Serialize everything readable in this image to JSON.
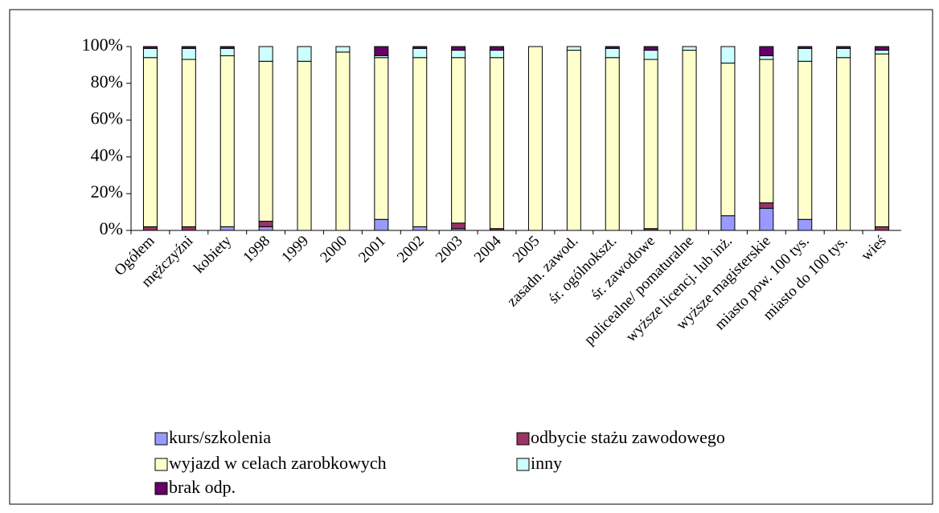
{
  "chart_data": {
    "type": "stacked_bar",
    "categories": [
      "Ogółem",
      "mężczyźni",
      "kobiety",
      "1998",
      "1999",
      "2000",
      "2001",
      "2002",
      "2003",
      "2004",
      "2005",
      "zasadn. zawod.",
      "śr. ogólnokszt.",
      "śr. zawodowe",
      "policealne/ pomaturalne",
      "wyższe licencj. lub inż.",
      "wyższe magisterskie",
      "miasto pow. 100 tys.",
      "miasto do 100 tys.",
      "wieś"
    ],
    "series": [
      {
        "name": "kurs/szkolenia",
        "color": "#9999ff",
        "values": [
          0,
          0,
          2,
          2,
          0,
          0,
          6,
          2,
          1,
          0,
          0,
          0,
          0,
          0,
          0,
          8,
          12,
          6,
          0,
          0
        ]
      },
      {
        "name": "odbycie stażu zawodowego",
        "color": "#993366",
        "values": [
          2,
          2,
          0,
          3,
          0,
          0,
          0,
          0,
          3,
          1,
          0,
          0,
          0,
          1,
          0,
          0,
          3,
          0,
          0,
          2
        ]
      },
      {
        "name": "wyjazd w celach zarobkowych",
        "color": "#ffffcc",
        "values": [
          92,
          91,
          93,
          87,
          92,
          97,
          88,
          92,
          90,
          93,
          100,
          98,
          94,
          92,
          98,
          83,
          78,
          86,
          94,
          94
        ]
      },
      {
        "name": "inny",
        "color": "#ccffff",
        "values": [
          5,
          6,
          4,
          8,
          8,
          3,
          1,
          5,
          4,
          4,
          0,
          2,
          5,
          5,
          2,
          9,
          2,
          7,
          5,
          2
        ]
      },
      {
        "name": "brak odp.",
        "color": "#660066",
        "values": [
          1,
          1,
          1,
          0,
          0,
          0,
          5,
          1,
          2,
          2,
          0,
          0,
          1,
          2,
          0,
          0,
          5,
          1,
          1,
          2
        ]
      }
    ],
    "ylim": [
      0,
      100
    ],
    "yticks": [
      {
        "value": 0,
        "label": "0%"
      },
      {
        "value": 20,
        "label": "20%"
      },
      {
        "value": 40,
        "label": "40%"
      },
      {
        "value": 60,
        "label": "60%"
      },
      {
        "value": 80,
        "label": "80%"
      },
      {
        "value": 100,
        "label": "100%"
      }
    ]
  }
}
